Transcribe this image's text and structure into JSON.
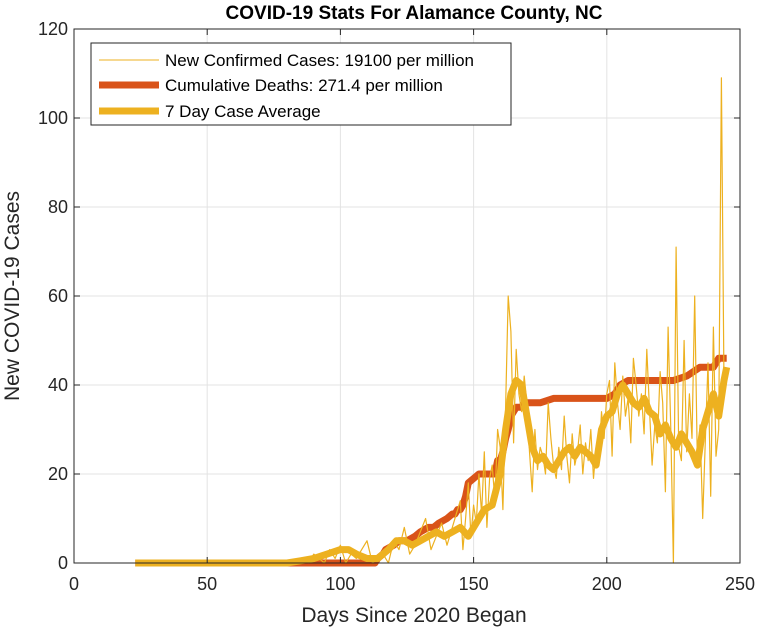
{
  "chart_data": {
    "type": "line",
    "title": "COVID-19 Stats For Alamance County, NC",
    "xlabel": "Days Since 2020 Began",
    "ylabel": "New COVID-19 Cases",
    "xlim": [
      0,
      250
    ],
    "ylim": [
      0,
      120
    ],
    "xticks": [
      0,
      50,
      100,
      150,
      200,
      250
    ],
    "yticks": [
      0,
      20,
      40,
      60,
      80,
      100,
      120
    ],
    "grid": true,
    "legend_position": "top-left",
    "series": [
      {
        "name": "New Confirmed Cases: 19100 per million",
        "color": "#EDB120",
        "style": "thin",
        "x": [
          23,
          60,
          80,
          85,
          88,
          90,
          92,
          94,
          96,
          98,
          100,
          102,
          104,
          106,
          108,
          110,
          112,
          114,
          116,
          118,
          120,
          122,
          124,
          126,
          128,
          130,
          132,
          134,
          136,
          138,
          140,
          142,
          144,
          145,
          146,
          147,
          148,
          149,
          150,
          151,
          152,
          153,
          154,
          155,
          156,
          157,
          158,
          159,
          160,
          161,
          162,
          163,
          164,
          165,
          166,
          167,
          168,
          169,
          170,
          171,
          172,
          173,
          174,
          175,
          176,
          177,
          178,
          179,
          180,
          181,
          182,
          183,
          184,
          185,
          186,
          187,
          188,
          189,
          190,
          191,
          192,
          193,
          194,
          195,
          196,
          197,
          198,
          199,
          200,
          201,
          202,
          203,
          204,
          205,
          206,
          207,
          208,
          209,
          210,
          211,
          212,
          213,
          214,
          215,
          216,
          217,
          218,
          219,
          220,
          221,
          222,
          223,
          224,
          225,
          226,
          227,
          228,
          229,
          230,
          231,
          232,
          233,
          234,
          235,
          236,
          237,
          238,
          239,
          240,
          241,
          242,
          243,
          244,
          245
        ],
        "y": [
          0,
          0,
          0,
          1,
          0,
          2,
          1,
          0,
          3,
          1,
          4,
          0,
          2,
          1,
          3,
          5,
          0,
          1,
          2,
          0,
          5,
          3,
          8,
          2,
          4,
          7,
          10,
          3,
          6,
          9,
          4,
          8,
          12,
          14,
          3,
          10,
          18,
          6,
          13,
          9,
          20,
          11,
          25,
          8,
          19,
          22,
          14,
          30,
          26,
          12,
          35,
          60,
          52,
          27,
          48,
          38,
          34,
          42,
          36,
          25,
          16,
          30,
          21,
          26,
          24,
          20,
          36,
          28,
          22,
          19,
          26,
          21,
          33,
          24,
          18,
          29,
          22,
          25,
          31,
          20,
          27,
          23,
          30,
          19,
          26,
          22,
          34,
          28,
          38,
          41,
          24,
          45,
          36,
          30,
          42,
          33,
          37,
          27,
          46,
          40,
          33,
          38,
          29,
          48,
          35,
          22,
          31,
          27,
          43,
          36,
          16,
          53,
          31,
          0,
          71,
          26,
          23,
          50,
          25,
          38,
          28,
          60,
          22,
          31,
          10,
          28,
          45,
          15,
          53,
          24,
          30,
          109,
          40,
          43
        ]
      },
      {
        "name": "Cumulative Deaths: 271.4 per million",
        "color": "#D95319",
        "style": "thick",
        "x": [
          23,
          80,
          90,
          100,
          110,
          113,
          114,
          116,
          117,
          120,
          122,
          125,
          128,
          130,
          133,
          135,
          137,
          140,
          142,
          143,
          144,
          145,
          146,
          147,
          148,
          152,
          158,
          159,
          160,
          161,
          162,
          163,
          164,
          165,
          166,
          167,
          168,
          169,
          170,
          172,
          175,
          180,
          185,
          190,
          195,
          200,
          203,
          205,
          208,
          210,
          215,
          220,
          225,
          230,
          235,
          240,
          242,
          245
        ],
        "y": [
          0,
          0,
          0,
          0,
          0,
          0,
          1,
          2,
          3,
          4,
          5,
          5,
          6,
          7,
          8,
          8,
          9,
          10,
          11,
          11,
          12,
          12,
          13,
          15,
          18,
          20,
          20,
          23,
          23,
          25,
          28,
          30,
          33,
          34,
          35,
          35,
          35,
          36,
          36,
          36,
          36,
          37,
          37,
          37,
          37,
          37,
          38,
          40,
          41,
          41,
          41,
          41,
          41,
          42,
          44,
          44,
          46,
          46
        ]
      },
      {
        "name": "7 Day Case Average",
        "color": "#EDB120",
        "style": "thick",
        "x": [
          23,
          70,
          80,
          85,
          90,
          95,
          100,
          103,
          106,
          110,
          114,
          118,
          121,
          124,
          127,
          130,
          133,
          136,
          139,
          142,
          145,
          148,
          151,
          154,
          157,
          160,
          162,
          164,
          166,
          168,
          170,
          172,
          174,
          176,
          178,
          180,
          182,
          184,
          186,
          188,
          190,
          192,
          194,
          196,
          198,
          200,
          202,
          204,
          206,
          208,
          210,
          212,
          214,
          216,
          218,
          220,
          222,
          224,
          226,
          228,
          230,
          232,
          234,
          236,
          238,
          240,
          242,
          244,
          245
        ],
        "y": [
          0,
          0,
          0,
          0.5,
          1,
          2,
          3,
          3,
          2,
          1,
          1,
          3,
          5,
          5,
          4,
          5,
          6,
          7,
          6,
          7,
          8,
          6,
          9,
          12,
          13,
          20,
          30,
          38,
          41,
          40,
          33,
          26,
          23,
          24,
          22,
          21,
          23,
          25,
          26,
          24,
          26,
          25,
          24,
          22,
          30,
          33,
          34,
          38,
          40,
          38,
          36,
          35,
          37,
          34,
          33,
          29,
          31,
          28,
          26,
          29,
          27,
          25,
          22,
          30,
          34,
          38,
          33,
          41,
          44
        ]
      }
    ]
  }
}
